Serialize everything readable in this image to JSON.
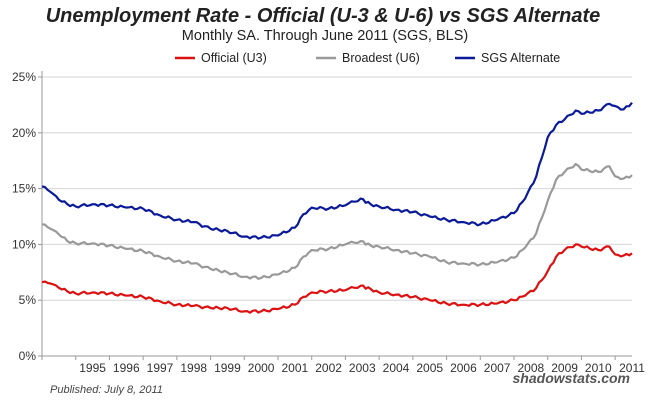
{
  "chart_data": {
    "type": "line",
    "title": "Unemployment Rate - Official (U-3 & U-6) vs SGS Alternate",
    "subtitle": "Monthly SA. Through June 2011  (SGS, BLS)",
    "xlabel": "",
    "ylabel": "",
    "xlim": [
      1994.0,
      2011.5
    ],
    "ylim": [
      0,
      25
    ],
    "y_ticks": [
      0,
      5,
      10,
      15,
      20,
      25
    ],
    "y_tick_labels": [
      "0%",
      "5%",
      "10%",
      "15%",
      "20%",
      "25%"
    ],
    "x_ticks": [
      1995,
      1996,
      1997,
      1998,
      1999,
      2000,
      2001,
      2002,
      2003,
      2004,
      2005,
      2006,
      2007,
      2008,
      2009,
      2010,
      2011
    ],
    "x_tick_labels": [
      "1995",
      "1996",
      "1997",
      "1998",
      "1999",
      "2000",
      "2001",
      "2002",
      "2003",
      "2004",
      "2005",
      "2006",
      "2007",
      "2008",
      "2009",
      "2010",
      "2011"
    ],
    "grid": true,
    "legend_position": "top",
    "series": [
      {
        "name": "Official (U3)",
        "color": "#dd1111",
        "points": [
          [
            1994.0,
            6.6
          ],
          [
            1994.25,
            6.5
          ],
          [
            1994.5,
            6.1
          ],
          [
            1994.75,
            5.8
          ],
          [
            1995.0,
            5.6
          ],
          [
            1995.5,
            5.7
          ],
          [
            1996.0,
            5.6
          ],
          [
            1996.5,
            5.4
          ],
          [
            1997.0,
            5.3
          ],
          [
            1997.5,
            4.9
          ],
          [
            1998.0,
            4.6
          ],
          [
            1998.5,
            4.5
          ],
          [
            1999.0,
            4.3
          ],
          [
            1999.5,
            4.3
          ],
          [
            2000.0,
            4.0
          ],
          [
            2000.5,
            4.0
          ],
          [
            2001.0,
            4.2
          ],
          [
            2001.5,
            4.6
          ],
          [
            2001.75,
            5.3
          ],
          [
            2002.0,
            5.7
          ],
          [
            2002.5,
            5.8
          ],
          [
            2003.0,
            5.9
          ],
          [
            2003.45,
            6.3
          ],
          [
            2003.75,
            6.0
          ],
          [
            2004.0,
            5.7
          ],
          [
            2004.5,
            5.5
          ],
          [
            2005.0,
            5.3
          ],
          [
            2005.5,
            5.0
          ],
          [
            2006.0,
            4.7
          ],
          [
            2006.5,
            4.6
          ],
          [
            2007.0,
            4.6
          ],
          [
            2007.5,
            4.7
          ],
          [
            2008.0,
            5.0
          ],
          [
            2008.33,
            5.4
          ],
          [
            2008.66,
            6.1
          ],
          [
            2009.0,
            7.6
          ],
          [
            2009.25,
            8.9
          ],
          [
            2009.5,
            9.5
          ],
          [
            2009.83,
            10.0
          ],
          [
            2010.0,
            9.8
          ],
          [
            2010.5,
            9.5
          ],
          [
            2010.83,
            9.8
          ],
          [
            2011.0,
            9.1
          ],
          [
            2011.25,
            9.0
          ],
          [
            2011.5,
            9.2
          ]
        ]
      },
      {
        "name": "Broadest (U6)",
        "color": "#999999",
        "points": [
          [
            1994.0,
            11.8
          ],
          [
            1994.25,
            11.4
          ],
          [
            1994.5,
            10.9
          ],
          [
            1994.75,
            10.3
          ],
          [
            1995.0,
            10.1
          ],
          [
            1995.5,
            10.1
          ],
          [
            1996.0,
            9.9
          ],
          [
            1996.5,
            9.6
          ],
          [
            1997.0,
            9.4
          ],
          [
            1997.5,
            8.9
          ],
          [
            1998.0,
            8.5
          ],
          [
            1998.5,
            8.3
          ],
          [
            1999.0,
            7.8
          ],
          [
            1999.5,
            7.5
          ],
          [
            2000.0,
            7.1
          ],
          [
            2000.5,
            7.0
          ],
          [
            2001.0,
            7.3
          ],
          [
            2001.5,
            7.9
          ],
          [
            2001.75,
            8.9
          ],
          [
            2002.0,
            9.5
          ],
          [
            2002.5,
            9.6
          ],
          [
            2003.0,
            10.0
          ],
          [
            2003.45,
            10.3
          ],
          [
            2003.75,
            9.9
          ],
          [
            2004.0,
            9.8
          ],
          [
            2004.5,
            9.5
          ],
          [
            2005.0,
            9.2
          ],
          [
            2005.5,
            8.9
          ],
          [
            2006.0,
            8.4
          ],
          [
            2006.5,
            8.3
          ],
          [
            2007.0,
            8.2
          ],
          [
            2007.5,
            8.4
          ],
          [
            2008.0,
            8.8
          ],
          [
            2008.33,
            9.7
          ],
          [
            2008.66,
            11.0
          ],
          [
            2009.0,
            13.9
          ],
          [
            2009.25,
            15.8
          ],
          [
            2009.5,
            16.5
          ],
          [
            2009.83,
            17.2
          ],
          [
            2010.0,
            16.7
          ],
          [
            2010.5,
            16.5
          ],
          [
            2010.83,
            17.0
          ],
          [
            2011.0,
            16.1
          ],
          [
            2011.25,
            15.9
          ],
          [
            2011.5,
            16.2
          ]
        ]
      },
      {
        "name": "SGS Alternate",
        "color": "#0a1a99",
        "points": [
          [
            1994.0,
            15.2
          ],
          [
            1994.25,
            14.7
          ],
          [
            1994.5,
            14.0
          ],
          [
            1994.75,
            13.6
          ],
          [
            1995.0,
            13.4
          ],
          [
            1995.5,
            13.6
          ],
          [
            1996.0,
            13.5
          ],
          [
            1996.5,
            13.3
          ],
          [
            1997.0,
            13.2
          ],
          [
            1997.5,
            12.6
          ],
          [
            1998.0,
            12.2
          ],
          [
            1998.5,
            12.0
          ],
          [
            1999.0,
            11.4
          ],
          [
            1999.5,
            11.2
          ],
          [
            2000.0,
            10.7
          ],
          [
            2000.5,
            10.6
          ],
          [
            2001.0,
            10.8
          ],
          [
            2001.5,
            11.5
          ],
          [
            2001.75,
            12.7
          ],
          [
            2002.0,
            13.3
          ],
          [
            2002.5,
            13.2
          ],
          [
            2003.0,
            13.5
          ],
          [
            2003.45,
            14.1
          ],
          [
            2003.75,
            13.6
          ],
          [
            2004.0,
            13.4
          ],
          [
            2004.5,
            13.1
          ],
          [
            2005.0,
            12.9
          ],
          [
            2005.5,
            12.5
          ],
          [
            2006.0,
            12.2
          ],
          [
            2006.5,
            12.0
          ],
          [
            2007.0,
            11.8
          ],
          [
            2007.5,
            12.2
          ],
          [
            2008.0,
            12.8
          ],
          [
            2008.33,
            14.1
          ],
          [
            2008.66,
            16.1
          ],
          [
            2009.0,
            19.6
          ],
          [
            2009.25,
            20.7
          ],
          [
            2009.5,
            21.2
          ],
          [
            2009.83,
            22.0
          ],
          [
            2010.0,
            21.7
          ],
          [
            2010.5,
            22.0
          ],
          [
            2010.83,
            22.6
          ],
          [
            2011.0,
            22.4
          ],
          [
            2011.25,
            22.1
          ],
          [
            2011.5,
            22.7
          ]
        ]
      }
    ]
  },
  "footer": {
    "published": "Published: July 8, 2011",
    "source": "shadowstats.com"
  },
  "colors": {
    "grid": "#d6d6d6",
    "axis": "#999999"
  }
}
